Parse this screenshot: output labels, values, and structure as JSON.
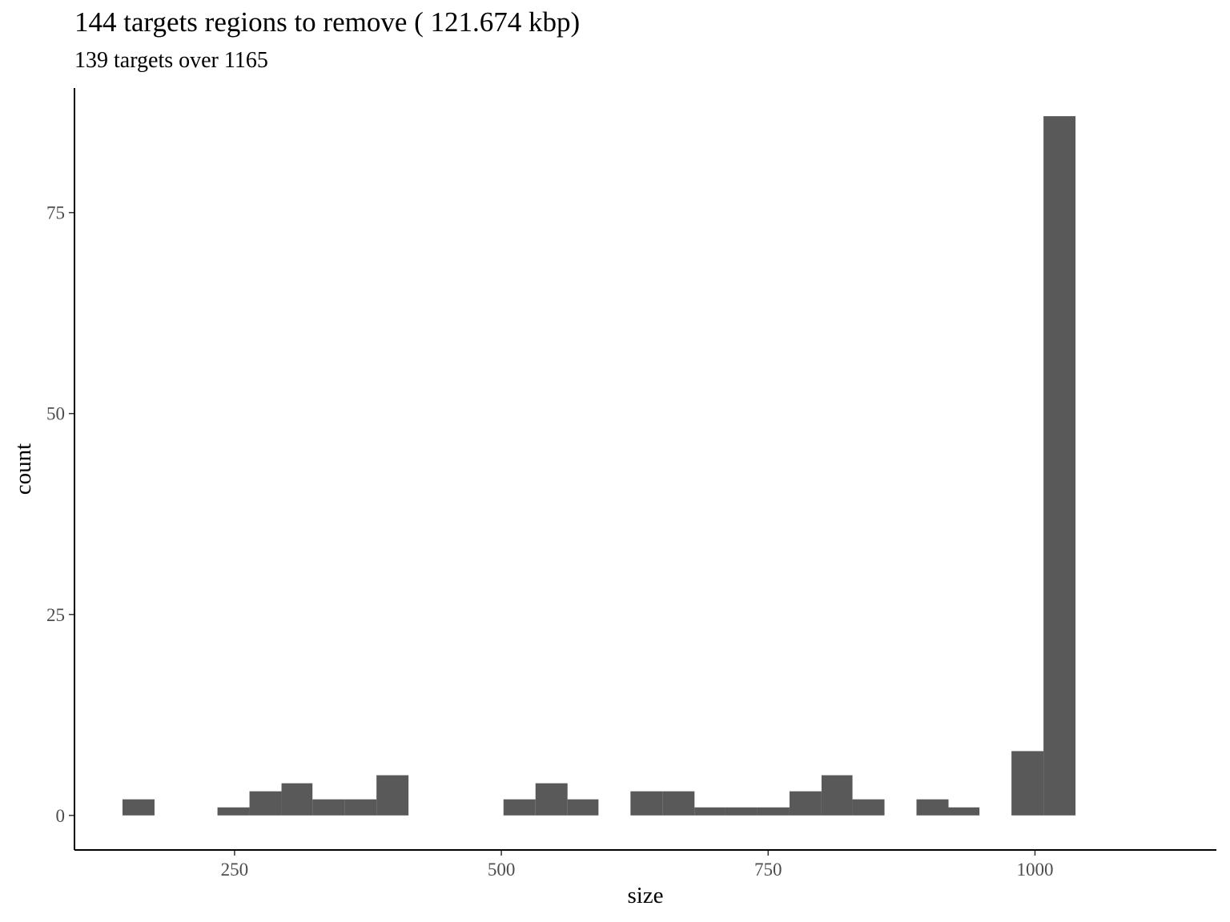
{
  "chart_data": {
    "type": "bar",
    "title": "144 targets regions to remove ( 121.674 kbp)",
    "subtitle": "139 targets over 1165",
    "xlabel": "size",
    "ylabel": "count",
    "xlim": [
      100,
      1170
    ],
    "ylim": [
      -4.3,
      90.5
    ],
    "x_ticks": [
      250,
      500,
      750,
      1000
    ],
    "y_ticks": [
      0,
      25,
      50,
      75
    ],
    "bar_color": "#595959",
    "grid": false,
    "bins": [
      {
        "x0": 145,
        "x1": 175,
        "count": 2
      },
      {
        "x0": 234,
        "x1": 264,
        "count": 1
      },
      {
        "x0": 264,
        "x1": 294,
        "count": 3
      },
      {
        "x0": 294,
        "x1": 323,
        "count": 4
      },
      {
        "x0": 323,
        "x1": 353,
        "count": 2
      },
      {
        "x0": 353,
        "x1": 383,
        "count": 2
      },
      {
        "x0": 383,
        "x1": 413,
        "count": 5
      },
      {
        "x0": 502,
        "x1": 532,
        "count": 2
      },
      {
        "x0": 532,
        "x1": 562,
        "count": 4
      },
      {
        "x0": 562,
        "x1": 591,
        "count": 2
      },
      {
        "x0": 621,
        "x1": 651,
        "count": 3
      },
      {
        "x0": 651,
        "x1": 681,
        "count": 3
      },
      {
        "x0": 681,
        "x1": 710,
        "count": 1
      },
      {
        "x0": 710,
        "x1": 740,
        "count": 1
      },
      {
        "x0": 740,
        "x1": 770,
        "count": 1
      },
      {
        "x0": 770,
        "x1": 800,
        "count": 3
      },
      {
        "x0": 800,
        "x1": 829,
        "count": 5
      },
      {
        "x0": 829,
        "x1": 859,
        "count": 2
      },
      {
        "x0": 889,
        "x1": 919,
        "count": 2
      },
      {
        "x0": 919,
        "x1": 948,
        "count": 1
      },
      {
        "x0": 978,
        "x1": 1008,
        "count": 8
      },
      {
        "x0": 1008,
        "x1": 1038,
        "count": 87
      }
    ]
  }
}
